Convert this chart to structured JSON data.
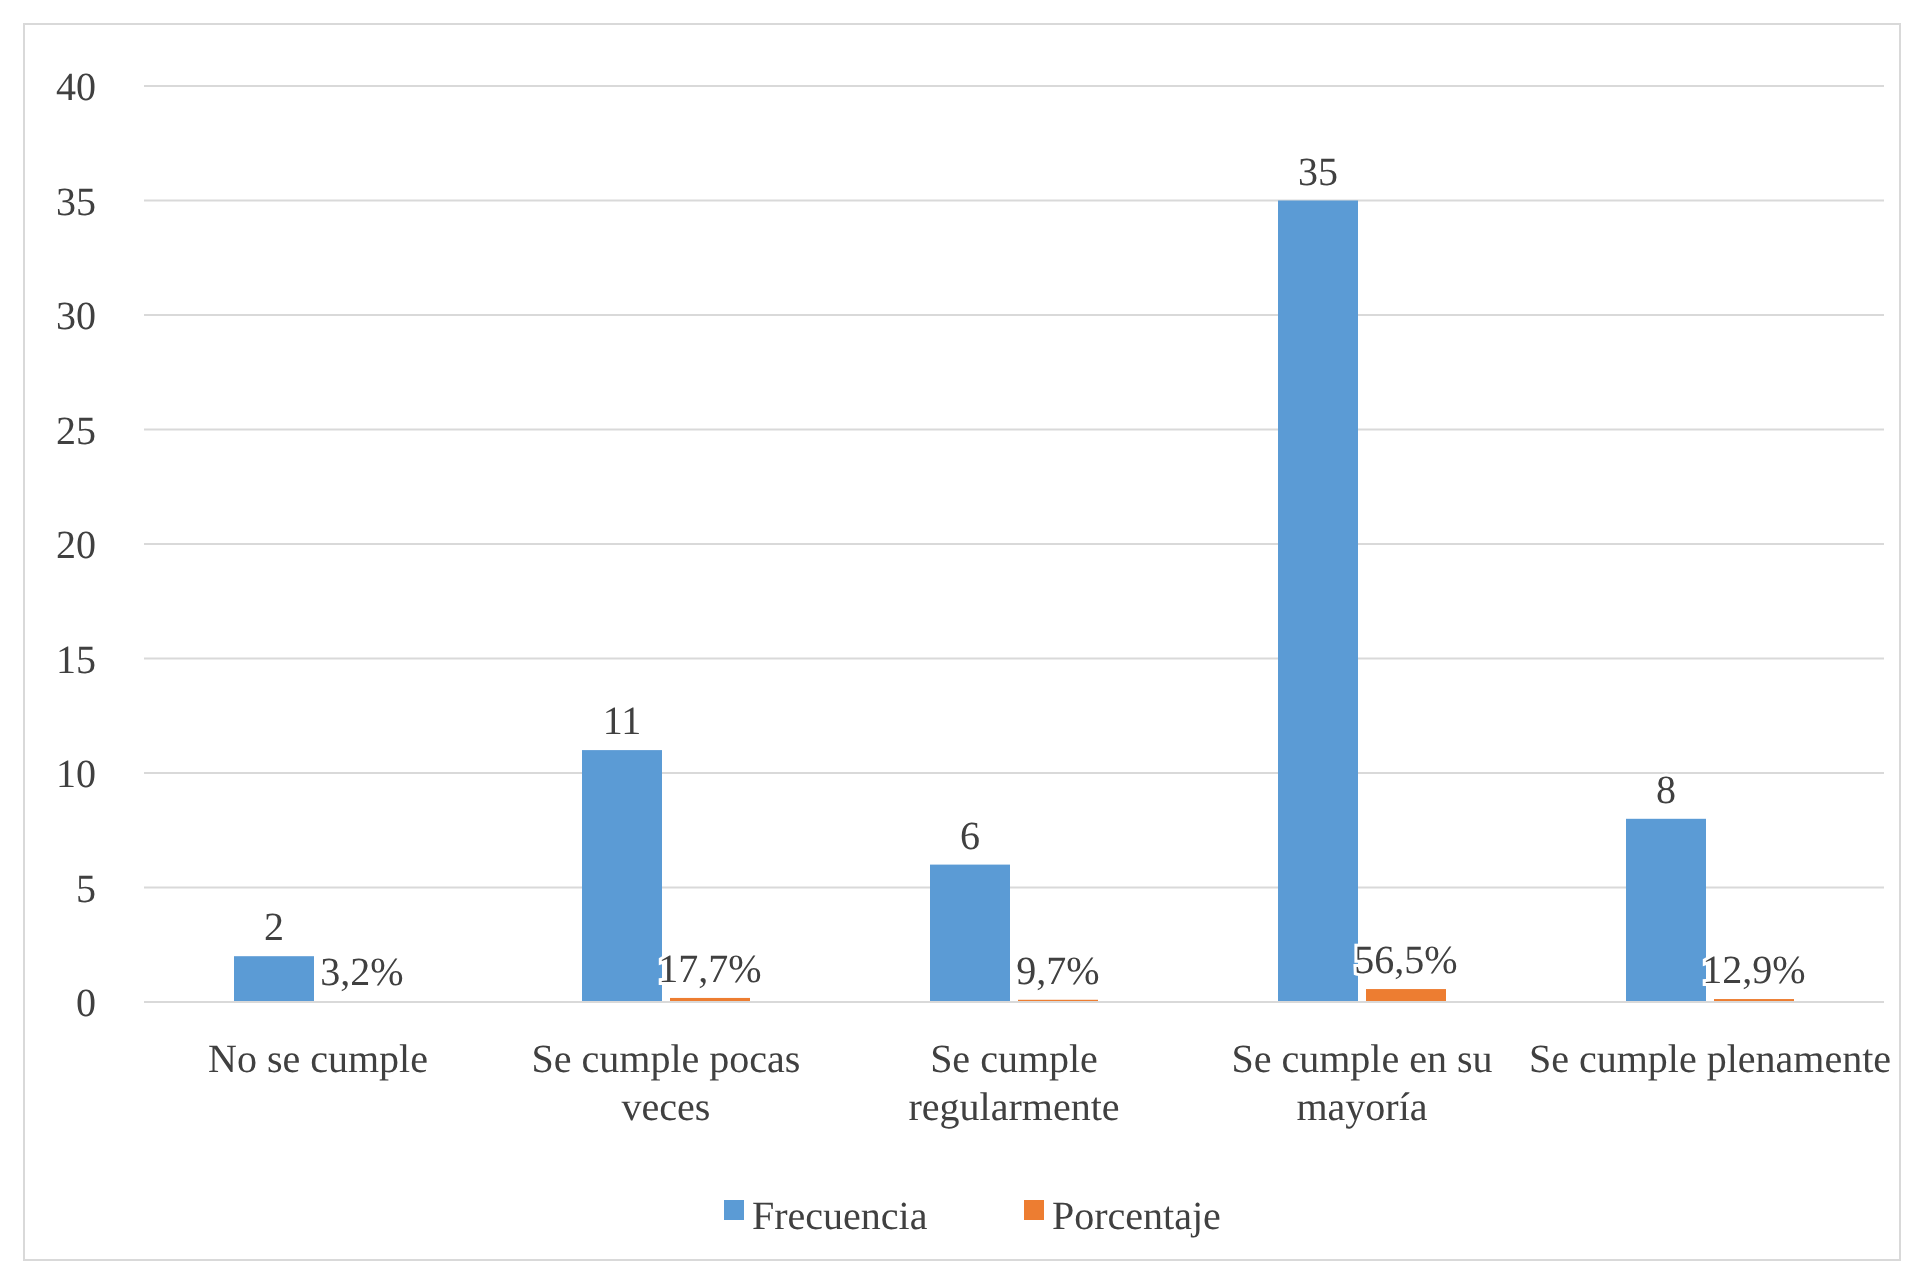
{
  "chart_data": {
    "type": "bar",
    "categories": [
      "No se cumple",
      "Se cumple pocas veces",
      "Se cumple regularmente",
      "Se cumple en su mayoría",
      "Se cumple plenamente"
    ],
    "series": [
      {
        "name": "Frecuencia",
        "color": "#5b9bd5",
        "values": [
          2,
          11,
          6,
          35,
          8
        ],
        "value_labels": [
          "2",
          "11",
          "6",
          "35",
          "8"
        ]
      },
      {
        "name": "Porcentaje",
        "color": "#ed7d31",
        "values": [
          0.032,
          0.177,
          0.097,
          0.565,
          0.129
        ],
        "value_labels": [
          "3,2%",
          "17,7%",
          "9,7%",
          "56,5%",
          "12,9%"
        ]
      }
    ],
    "ylim": [
      0,
      40
    ],
    "yticks": [
      0,
      5,
      10,
      15,
      20,
      25,
      30,
      35,
      40
    ],
    "grid": "y",
    "legend": "bottom"
  }
}
